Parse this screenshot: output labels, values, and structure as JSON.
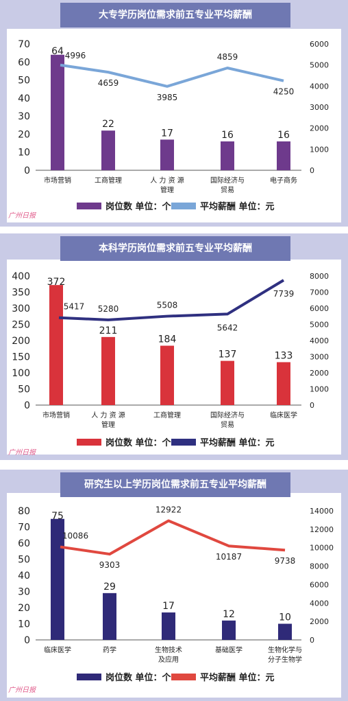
{
  "logo_text": "广州日报",
  "chart_data": [
    {
      "type": "bar",
      "title": "大专学历岗位需求前五专业平均薪酬",
      "categories": [
        [
          "市场营销"
        ],
        [
          "工商管理"
        ],
        [
          "人 力 资 源",
          "管理"
        ],
        [
          "国际经济与",
          "贸易"
        ],
        [
          "电子商务"
        ]
      ],
      "series": [
        {
          "name": "岗位数  单位：个",
          "type": "bar",
          "axis": "left",
          "values": [
            64,
            22,
            17,
            16,
            16
          ],
          "color": "#6e3a8c"
        },
        {
          "name": "平均薪酬   单位：元",
          "type": "line",
          "axis": "right",
          "values": [
            4996,
            4659,
            3985,
            4859,
            4250
          ],
          "color": "#7aa6d8"
        }
      ],
      "ylim": [
        0,
        70
      ],
      "yticks": [
        0,
        10,
        20,
        30,
        40,
        50,
        60,
        70
      ],
      "y2lim": [
        0,
        6000
      ],
      "y2ticks": [
        0,
        1000,
        2000,
        3000,
        4000,
        5000,
        6000
      ],
      "legend": "bottom",
      "grid": false
    },
    {
      "type": "bar",
      "title": "本科学历岗位需求前五专业平均薪酬",
      "categories": [
        [
          "市场营销"
        ],
        [
          "人 力 资 源",
          "管理"
        ],
        [
          "工商管理"
        ],
        [
          "国际经济与",
          "贸易"
        ],
        [
          "临床医学"
        ]
      ],
      "series": [
        {
          "name": "岗位数  单位：个",
          "type": "bar",
          "axis": "left",
          "values": [
            372,
            211,
            184,
            137,
            133
          ],
          "color": "#d9333b"
        },
        {
          "name": "平均薪酬   单位：元",
          "type": "line",
          "axis": "right",
          "values": [
            5417,
            5280,
            5508,
            5642,
            7739
          ],
          "color": "#2f3080"
        }
      ],
      "ylim": [
        0,
        400
      ],
      "yticks": [
        0,
        50,
        100,
        150,
        200,
        250,
        300,
        350,
        400
      ],
      "y2lim": [
        0,
        8000
      ],
      "y2ticks": [
        0,
        1000,
        2000,
        3000,
        4000,
        5000,
        6000,
        7000,
        8000
      ],
      "legend": "bottom",
      "grid": false
    },
    {
      "type": "bar",
      "title": "研究生以上学历岗位需求前五专业平均薪酬",
      "categories": [
        [
          "临床医学"
        ],
        [
          "药学"
        ],
        [
          "生物技术",
          "及应用"
        ],
        [
          "基础医学"
        ],
        [
          "生物化学与",
          "分子生物学"
        ]
      ],
      "series": [
        {
          "name": "岗位数  单位：个",
          "type": "bar",
          "axis": "left",
          "values": [
            75,
            29,
            17,
            12,
            10
          ],
          "color": "#2f2a78"
        },
        {
          "name": "平均薪酬   单位：元",
          "type": "line",
          "axis": "right",
          "values": [
            10086,
            9303,
            12922,
            10187,
            9738
          ],
          "color": "#e0483f"
        }
      ],
      "ylim": [
        0,
        80
      ],
      "yticks": [
        0,
        10,
        20,
        30,
        40,
        50,
        60,
        70,
        80
      ],
      "y2lim": [
        0,
        14000
      ],
      "y2ticks": [
        0,
        2000,
        4000,
        6000,
        8000,
        10000,
        12000,
        14000
      ],
      "legend": "bottom",
      "grid": false
    }
  ]
}
